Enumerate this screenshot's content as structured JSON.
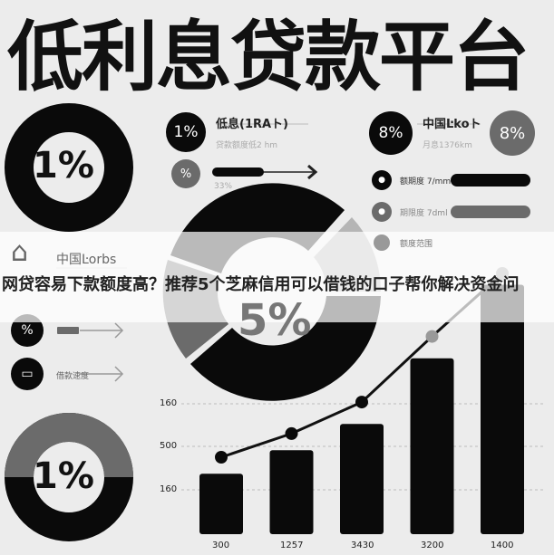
{
  "title": "低利息贷款平台",
  "colors": {
    "black": "#0a0a0a",
    "gray": "#6b6b6b",
    "light_gray": "#b5b5b5",
    "background": "#ececec"
  },
  "donut_top_left": {
    "label": "1%"
  },
  "donut_center": {
    "label": "5%"
  },
  "donut_bottom_left": {
    "label": "1%"
  },
  "card_low_rate": {
    "badge": "1%",
    "title": "低息(1RAト)",
    "subtitle": "贷款额度低2 hm",
    "sub_badge": "%",
    "progress_label": "33%"
  },
  "card_china": {
    "badge": "8%",
    "title": "中国Ŀkoト",
    "subtitle": "月息1376km",
    "badge_right": "8%"
  },
  "right_rows": [
    {
      "icon": "user-icon",
      "label": "额期度 7/mm"
    },
    {
      "icon": "clock-icon",
      "label": "期限度 7dml"
    },
    {
      "icon": "dot-icon",
      "label": "额度范围"
    }
  ],
  "left_items": [
    {
      "icon": "house-icon",
      "label": "中国Ŀorbs"
    },
    {
      "icon": "percent-icon",
      "label": "%"
    },
    {
      "icon": "monitor-icon",
      "label": "借款速度"
    }
  ],
  "banner": {
    "text": "网贷容易下款额度高？推荐5个芝麻信用可以借钱的口子帮你解决资金问"
  },
  "chart_data": {
    "type": "bar",
    "categories": [
      "300",
      "1257",
      "3430",
      "3200",
      "1400"
    ],
    "values": [
      23,
      32,
      42,
      67,
      95
    ],
    "line_values": [
      30,
      39,
      51,
      76,
      100
    ],
    "y_tick_labels": [
      "160",
      "500",
      "160"
    ],
    "xlabel": "",
    "ylabel": ""
  }
}
